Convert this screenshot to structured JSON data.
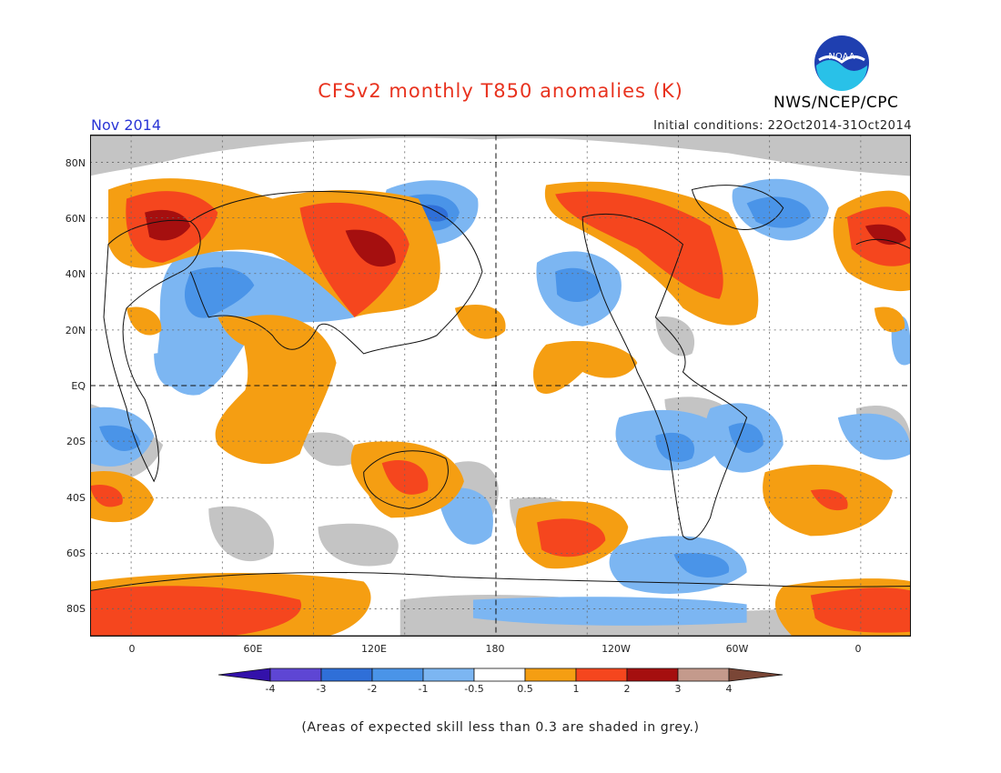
{
  "header": {
    "title": "CFSv2 monthly T850 anomalies (K)",
    "month": "Nov 2014",
    "initial_conditions": "Initial conditions: 22Oct2014-31Oct2014",
    "agency": "NWS/NCEP/CPC",
    "logo_text": "NOAA"
  },
  "axes": {
    "lat_labels": [
      "80N",
      "60N",
      "40N",
      "20N",
      "EQ",
      "20S",
      "40S",
      "60S",
      "80S"
    ],
    "lon_labels": [
      "0",
      "60E",
      "120E",
      "180",
      "120W",
      "60W",
      "0"
    ]
  },
  "colorbar": {
    "ticks": [
      "-4",
      "-3",
      "-2",
      "-1",
      "-0.5",
      "0.5",
      "1",
      "2",
      "3",
      "4"
    ],
    "colors": {
      "lt_minus4": "#3311aa",
      "m4_m3": "#5e46d4",
      "m3_m2": "#2f6fd8",
      "m2_m1": "#4a94e8",
      "m1_m05": "#7cb6f2",
      "neutral": "#ffffff",
      "p05_p1": "#f59e12",
      "p1_p2": "#f5461e",
      "p2_p3": "#a50f0f",
      "p3_p4": "#c49a8c",
      "gt_4": "#7a4636",
      "low_skill": "#c4c4c4"
    }
  },
  "footnote": "(Areas of expected skill less than 0.3 are shaded in grey.)"
}
